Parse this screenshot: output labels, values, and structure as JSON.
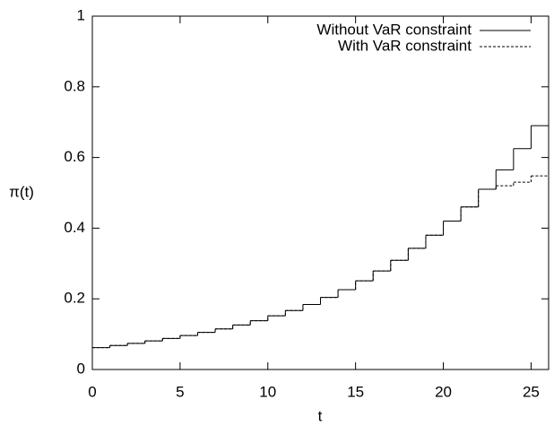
{
  "chart_data": {
    "type": "step",
    "xlabel": "t",
    "ylabel": "π(t)",
    "x": [
      0,
      1,
      2,
      3,
      4,
      5,
      6,
      7,
      8,
      9,
      10,
      11,
      12,
      13,
      14,
      15,
      16,
      17,
      18,
      19,
      20,
      21,
      22,
      23,
      24,
      25
    ],
    "series": [
      {
        "name": "Without VaR constraint",
        "color": "#000000",
        "dash": "none",
        "values": [
          0.062,
          0.068,
          0.074,
          0.081,
          0.088,
          0.096,
          0.105,
          0.115,
          0.126,
          0.138,
          0.152,
          0.167,
          0.184,
          0.204,
          0.226,
          0.251,
          0.279,
          0.309,
          0.343,
          0.38,
          0.42,
          0.46,
          0.51,
          0.565,
          0.625,
          0.69
        ]
      },
      {
        "name": "With VaR constraint",
        "color": "#000000",
        "dash": "3,2",
        "values": [
          0.062,
          0.068,
          0.074,
          0.081,
          0.088,
          0.096,
          0.105,
          0.115,
          0.126,
          0.138,
          0.152,
          0.167,
          0.184,
          0.204,
          0.226,
          0.251,
          0.279,
          0.309,
          0.343,
          0.38,
          0.42,
          0.46,
          0.51,
          0.52,
          0.53,
          0.548
        ]
      }
    ],
    "xlim": [
      0,
      26
    ],
    "ylim": [
      0,
      1
    ],
    "xticks": [
      0,
      5,
      10,
      15,
      20,
      25
    ],
    "yticks": [
      0,
      0.2,
      0.4,
      0.6,
      0.8,
      1
    ],
    "legend": "top-right"
  }
}
